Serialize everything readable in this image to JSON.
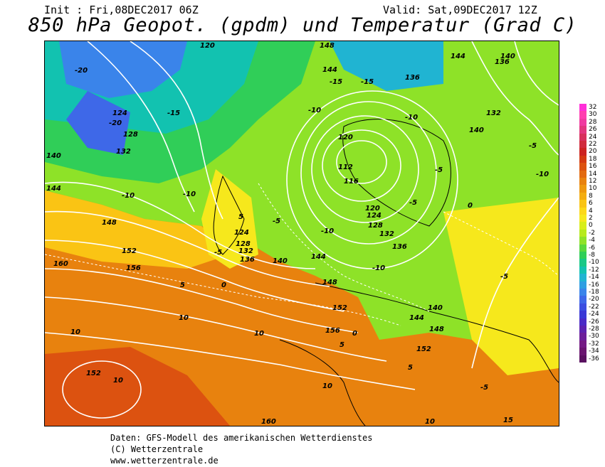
{
  "header": {
    "init": "Init : Fri,08DEC2017 06Z",
    "valid": "Valid: Sat,09DEC2017 12Z",
    "title": "850 hPa Geopot. (gpdm) und Temperatur (Grad C)"
  },
  "map": {
    "geopotential_labels": [
      "112",
      "116",
      "120",
      "124",
      "128",
      "132",
      "136",
      "140",
      "144",
      "148",
      "152",
      "156",
      "160"
    ],
    "temperature_labels": [
      "-20",
      "-15",
      "-10",
      "-5",
      "0",
      "5",
      "10",
      "15"
    ]
  },
  "colorbar": {
    "ticks": [
      "32",
      "30",
      "28",
      "26",
      "24",
      "22",
      "20",
      "18",
      "16",
      "14",
      "12",
      "10",
      "8",
      "6",
      "4",
      "2",
      "0",
      "-2",
      "-4",
      "-6",
      "-8",
      "-10",
      "-12",
      "-14",
      "-16",
      "-18",
      "-20",
      "-22",
      "-24",
      "-26",
      "-28",
      "-30",
      "-32",
      "-34",
      "-36"
    ],
    "colors": [
      "#ff2fd8",
      "#ff3eb0",
      "#f03aa0",
      "#e2367e",
      "#d7305c",
      "#d02a3c",
      "#cc2320",
      "#d43a12",
      "#dc5210",
      "#e26a10",
      "#e8820e",
      "#ee980e",
      "#f4ad10",
      "#fac414",
      "#fcd818",
      "#f6e81c",
      "#d8ee1a",
      "#b6ea1c",
      "#8ee228",
      "#5ad83c",
      "#30ce58",
      "#18c886",
      "#12c2b0",
      "#20b4d2",
      "#2e9ee2",
      "#3a84ea",
      "#3e68e8",
      "#3c4ee0",
      "#3a38d6",
      "#4a2ac6",
      "#5c22b0",
      "#6c1e9a",
      "#741a84",
      "#6a1470",
      "#5a1060"
    ]
  },
  "footer": {
    "source": "Daten: GFS-Modell des amerikanischen Wetterdienstes",
    "copyright": "(C) Wetterzentrale",
    "url": "www.wetterzentrale.de"
  }
}
